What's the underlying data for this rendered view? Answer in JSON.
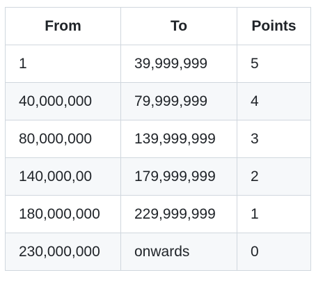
{
  "table": {
    "headers": [
      "From",
      "To",
      "Points"
    ],
    "rows": [
      [
        "1",
        "39,999,999",
        "5"
      ],
      [
        "40,000,000",
        "79,999,999",
        "4"
      ],
      [
        "80,000,000",
        "139,999,999",
        "3"
      ],
      [
        "140,000,00",
        "179,999,999",
        "2"
      ],
      [
        "180,000,000",
        "229,999,999",
        "1"
      ],
      [
        "230,000,000",
        "onwards",
        "0"
      ]
    ]
  }
}
